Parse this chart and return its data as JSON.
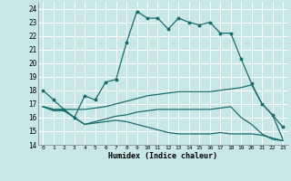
{
  "title": "",
  "xlabel": "Humidex (Indice chaleur)",
  "ylabel": "",
  "xlim": [
    -0.5,
    23.5
  ],
  "ylim": [
    14,
    24.5
  ],
  "yticks": [
    14,
    15,
    16,
    17,
    18,
    19,
    20,
    21,
    22,
    23,
    24
  ],
  "xticks": [
    0,
    1,
    2,
    3,
    4,
    5,
    6,
    7,
    8,
    9,
    10,
    11,
    12,
    13,
    14,
    15,
    16,
    17,
    18,
    19,
    20,
    21,
    22,
    23
  ],
  "bg_color": "#c8e8e8",
  "grid_color": "#b0d8d8",
  "line_color": "#1a6b6b",
  "lines": [
    {
      "x": [
        0,
        1,
        2,
        3,
        4,
        5,
        6,
        7,
        8,
        9,
        10,
        11,
        12,
        13,
        14,
        15,
        16,
        17,
        18,
        19,
        20,
        21,
        22,
        23
      ],
      "y": [
        18.0,
        17.3,
        16.6,
        16.0,
        17.6,
        17.3,
        18.6,
        18.8,
        21.5,
        23.8,
        23.3,
        23.3,
        22.5,
        23.3,
        23.0,
        22.8,
        23.0,
        22.2,
        22.2,
        20.3,
        18.5,
        17.0,
        16.2,
        15.3
      ],
      "marker": true
    },
    {
      "x": [
        0,
        1,
        2,
        3,
        4,
        5,
        6,
        7,
        8,
        9,
        10,
        11,
        12,
        13,
        14,
        15,
        16,
        17,
        18,
        19,
        20,
        21,
        22,
        23
      ],
      "y": [
        16.8,
        16.6,
        16.6,
        16.6,
        16.6,
        16.7,
        16.8,
        17.0,
        17.2,
        17.4,
        17.6,
        17.7,
        17.8,
        17.9,
        17.9,
        17.9,
        17.9,
        18.0,
        18.1,
        18.2,
        18.4,
        17.0,
        16.2,
        14.4
      ],
      "marker": false
    },
    {
      "x": [
        0,
        1,
        2,
        3,
        4,
        5,
        6,
        7,
        8,
        9,
        10,
        11,
        12,
        13,
        14,
        15,
        16,
        17,
        18,
        19,
        20,
        21,
        22,
        23
      ],
      "y": [
        16.8,
        16.6,
        16.6,
        16.0,
        15.5,
        15.7,
        15.9,
        16.1,
        16.2,
        16.4,
        16.5,
        16.6,
        16.6,
        16.6,
        16.6,
        16.6,
        16.6,
        16.7,
        16.8,
        16.0,
        15.5,
        14.8,
        14.4,
        14.3
      ],
      "marker": false
    },
    {
      "x": [
        0,
        1,
        2,
        3,
        4,
        5,
        6,
        7,
        8,
        9,
        10,
        11,
        12,
        13,
        14,
        15,
        16,
        17,
        18,
        19,
        20,
        21,
        22,
        23
      ],
      "y": [
        16.8,
        16.5,
        16.5,
        16.0,
        15.5,
        15.6,
        15.7,
        15.8,
        15.7,
        15.5,
        15.3,
        15.1,
        14.9,
        14.8,
        14.8,
        14.8,
        14.8,
        14.9,
        14.8,
        14.8,
        14.8,
        14.7,
        14.5,
        14.3
      ],
      "marker": false
    }
  ]
}
